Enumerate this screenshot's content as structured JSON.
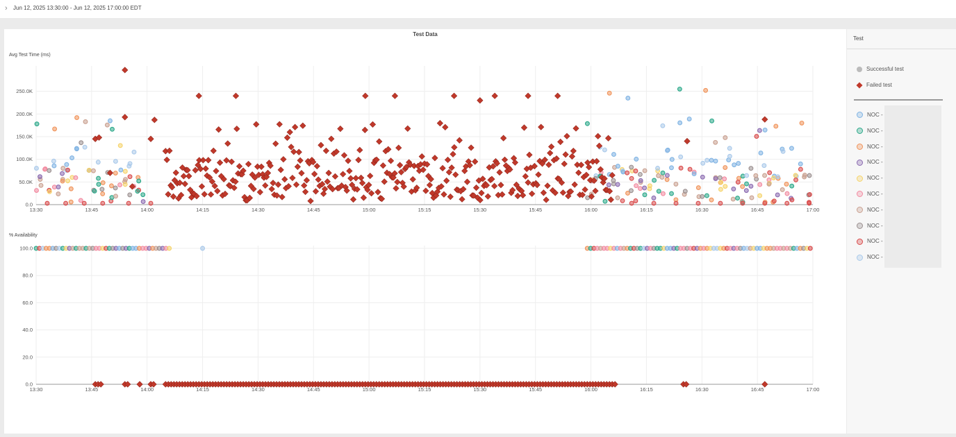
{
  "header": {
    "time_range": "Jun 12, 2025 13:30:00 - Jun 12, 2025 17:00:00 EDT"
  },
  "panel": {
    "title": "Test Data"
  },
  "sidebar": {
    "title": "Test",
    "legend": [
      {
        "label": "Successful test",
        "marker": "circle",
        "color": "#bbbbbb"
      },
      {
        "label": "Failed test",
        "marker": "diamond",
        "color": "#c0392b"
      }
    ],
    "series": [
      {
        "label": "NOC -",
        "color": "#7fb3e3"
      },
      {
        "label": "NOC -",
        "color": "#2aa889"
      },
      {
        "label": "NOC -",
        "color": "#f0935a"
      },
      {
        "label": "NOC -",
        "color": "#8a6ab0"
      },
      {
        "label": "NOC -",
        "color": "#f5d36a"
      },
      {
        "label": "NOC -",
        "color": "#f28aa0"
      },
      {
        "label": "NOC -",
        "color": "#c9a090"
      },
      {
        "label": "NOC -",
        "color": "#9a8f8f"
      },
      {
        "label": "NOC -",
        "color": "#d94a4a"
      },
      {
        "label": "NOC -",
        "color": "#a9c9ea"
      }
    ]
  },
  "chart_data": [
    {
      "type": "scatter",
      "title": "Test Data",
      "ylabel": "Avg Test Time (ms)",
      "x_range": [
        "13:30",
        "17:00"
      ],
      "x_ticks": [
        "13:30",
        "13:45",
        "14:00",
        "14:15",
        "14:30",
        "14:45",
        "15:00",
        "15:15",
        "15:30",
        "15:45",
        "16:00",
        "16:15",
        "16:30",
        "16:45",
        "17:00"
      ],
      "y_ticks": [
        "0.0",
        "50.0K",
        "100.0K",
        "150.0K",
        "200.0K",
        "250.0K"
      ],
      "ylim": [
        0,
        300000
      ],
      "failed_outliers": [
        {
          "t": "13:54",
          "y": 297000
        },
        {
          "t": "14:14",
          "y": 240000
        },
        {
          "t": "14:24",
          "y": 240000
        },
        {
          "t": "14:59",
          "y": 240000
        },
        {
          "t": "15:07",
          "y": 240000
        },
        {
          "t": "15:23",
          "y": 240000
        },
        {
          "t": "15:30",
          "y": 230000
        },
        {
          "t": "15:34",
          "y": 240000
        },
        {
          "t": "15:43",
          "y": 240000
        },
        {
          "t": "15:51",
          "y": 240000
        },
        {
          "t": "16:26",
          "y": 140000
        },
        {
          "t": "16:47",
          "y": 188000
        }
      ],
      "failed_band": {
        "start": "14:05",
        "end": "16:06",
        "typical_min": 20000,
        "typical_max": 100000
      },
      "success_segments": [
        {
          "start": "13:30",
          "end": "14:00",
          "min": 5000,
          "max": 190000
        },
        {
          "start": "15:59",
          "end": "17:00",
          "min": 5000,
          "max": 255000
        }
      ]
    },
    {
      "type": "scatter",
      "ylabel": "% Availability",
      "x_ticks": [
        "13:30",
        "13:45",
        "14:00",
        "14:15",
        "14:30",
        "14:45",
        "15:00",
        "15:15",
        "15:30",
        "15:45",
        "16:00",
        "16:15",
        "16:30",
        "16:45",
        "17:00"
      ],
      "y_ticks": [
        "0.0",
        "20.0",
        "40.0",
        "60.0",
        "80.0",
        "100.0"
      ],
      "ylim": [
        0,
        100
      ],
      "success_at_100": [
        {
          "start": "13:30",
          "end": "14:06"
        },
        {
          "start": "14:15",
          "end": "14:15"
        },
        {
          "start": "15:59",
          "end": "17:00"
        }
      ],
      "failed_at_0": [
        {
          "start": "13:46",
          "end": "13:48"
        },
        {
          "start": "13:54",
          "end": "13:55"
        },
        {
          "start": "13:58",
          "end": "13:58"
        },
        {
          "start": "14:01",
          "end": "14:02"
        },
        {
          "start": "14:05",
          "end": "16:07"
        },
        {
          "start": "16:25",
          "end": "16:26"
        },
        {
          "start": "16:47",
          "end": "16:47"
        }
      ]
    }
  ]
}
